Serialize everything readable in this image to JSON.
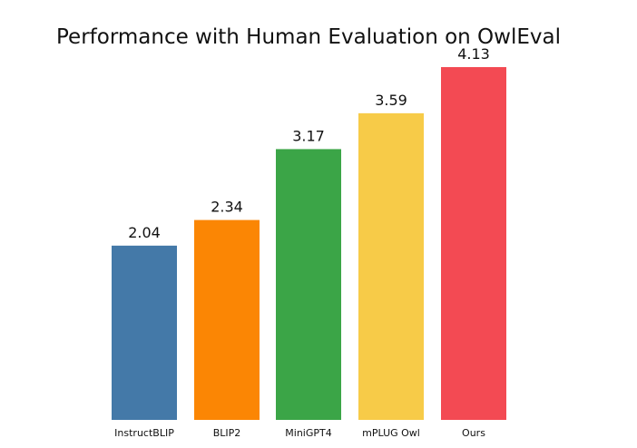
{
  "chart_data": {
    "type": "bar",
    "title": "Performance with Human Evaluation on OwlEval",
    "xlabel": "",
    "ylabel": "",
    "categories": [
      "InstructBLIP",
      "BLIP2",
      "MiniGPT4",
      "mPLUG Owl",
      "Ours"
    ],
    "values": [
      2.04,
      2.34,
      3.17,
      3.59,
      4.13
    ],
    "value_labels": [
      "2.04",
      "2.34",
      "3.17",
      "3.59",
      "4.13"
    ],
    "colors": [
      "#4479a8",
      "#fb8604",
      "#3ba547",
      "#f7cb48",
      "#f34a53"
    ],
    "ylim": [
      0,
      4.13
    ],
    "grid": false,
    "legend": "none"
  }
}
